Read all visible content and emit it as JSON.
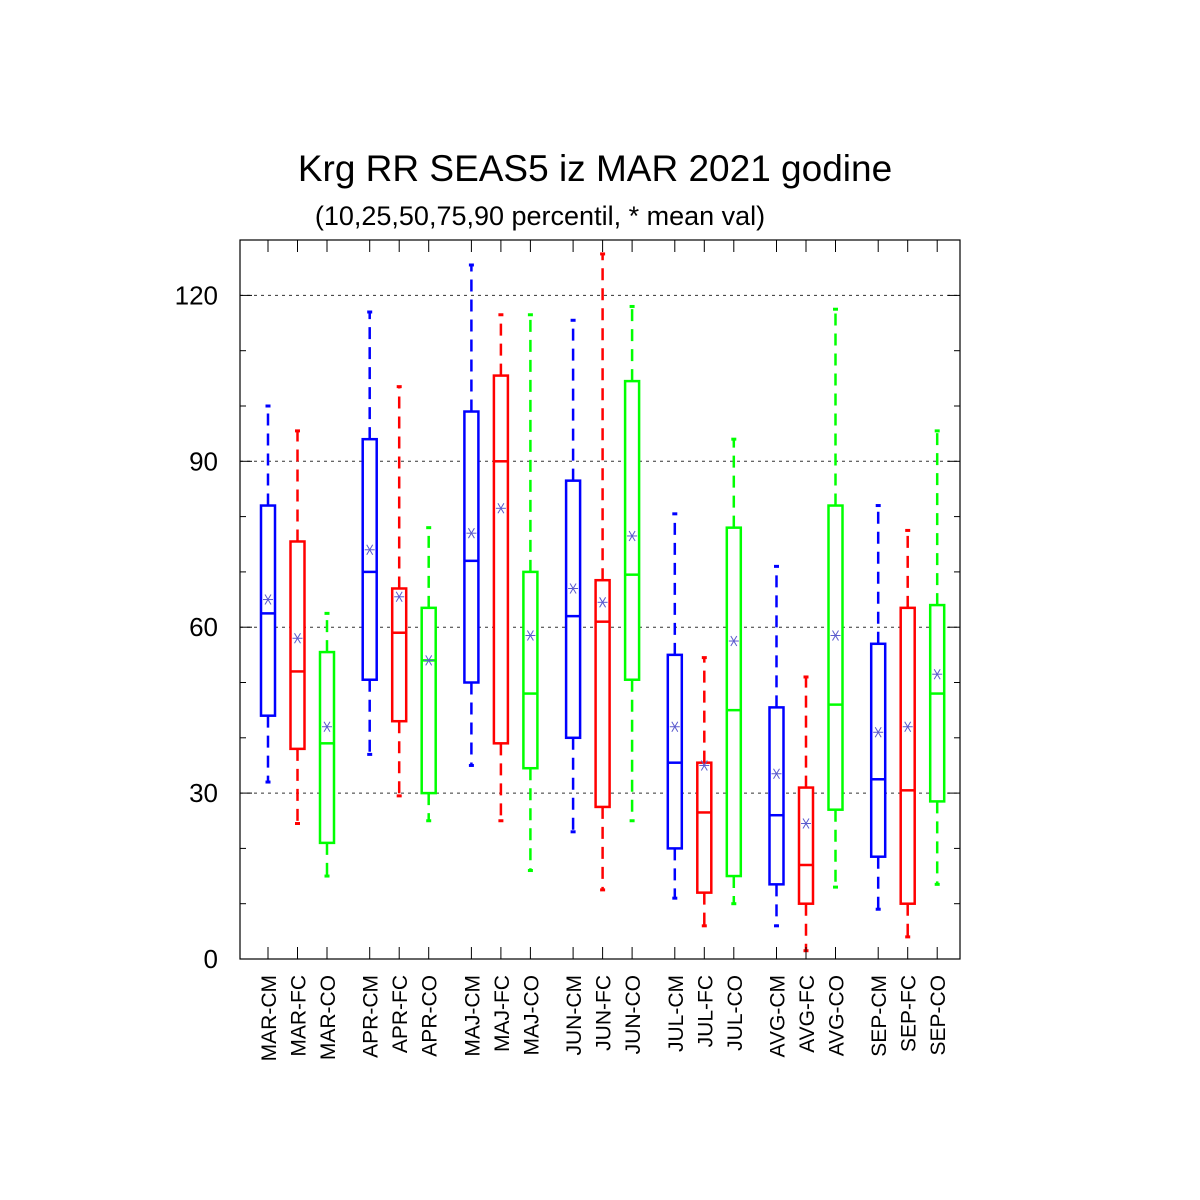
{
  "chart_data": {
    "type": "boxplot",
    "title": "Krg RR SEAS5 iz MAR 2021 godine",
    "subtitle": "(10,25,50,75,90 percentil, * mean val)",
    "xlabel": "",
    "ylabel": "",
    "ylim": [
      0,
      130
    ],
    "yticks": [
      0,
      30,
      60,
      90,
      120
    ],
    "grid": "horizontal-dashed",
    "colors": {
      "CM": "#0000ff",
      "FC": "#ff0000",
      "CO": "#00ff00",
      "mean_marker": "#5a5acd"
    },
    "categories": [
      "MAR-CM",
      "MAR-FC",
      "MAR-CO",
      "APR-CM",
      "APR-FC",
      "APR-CO",
      "MAJ-CM",
      "MAJ-FC",
      "MAJ-CO",
      "JUN-CM",
      "JUN-FC",
      "JUN-CO",
      "JUL-CM",
      "JUL-FC",
      "JUL-CO",
      "AVG-CM",
      "AVG-FC",
      "AVG-CO",
      "SEP-CM",
      "SEP-FC",
      "SEP-CO"
    ],
    "series": [
      {
        "label": "MAR-CM",
        "type": "CM",
        "p10": 32,
        "p25": 44,
        "p50": 62.5,
        "p75": 82,
        "p90": 100,
        "mean": 65
      },
      {
        "label": "MAR-FC",
        "type": "FC",
        "p10": 24.5,
        "p25": 38,
        "p50": 52,
        "p75": 75.5,
        "p90": 95.5,
        "mean": 58
      },
      {
        "label": "MAR-CO",
        "type": "CO",
        "p10": 15,
        "p25": 21,
        "p50": 39,
        "p75": 55.5,
        "p90": 62.5,
        "mean": 42
      },
      {
        "label": "APR-CM",
        "type": "CM",
        "p10": 37,
        "p25": 50.5,
        "p50": 70,
        "p75": 94,
        "p90": 117,
        "mean": 74
      },
      {
        "label": "APR-FC",
        "type": "FC",
        "p10": 29.5,
        "p25": 43,
        "p50": 59,
        "p75": 67,
        "p90": 103.5,
        "mean": 65.5
      },
      {
        "label": "APR-CO",
        "type": "CO",
        "p10": 25,
        "p25": 30,
        "p50": 54,
        "p75": 63.5,
        "p90": 78,
        "mean": 54
      },
      {
        "label": "MAJ-CM",
        "type": "CM",
        "p10": 35,
        "p25": 50,
        "p50": 72,
        "p75": 99,
        "p90": 125.5,
        "mean": 77
      },
      {
        "label": "MAJ-FC",
        "type": "FC",
        "p10": 25,
        "p25": 39,
        "p50": 90,
        "p75": 105.5,
        "p90": 116.5,
        "mean": 81.5
      },
      {
        "label": "MAJ-CO",
        "type": "CO",
        "p10": 16,
        "p25": 34.5,
        "p50": 48,
        "p75": 70,
        "p90": 116.5,
        "mean": 58.5
      },
      {
        "label": "JUN-CM",
        "type": "CM",
        "p10": 23,
        "p25": 40,
        "p50": 62,
        "p75": 86.5,
        "p90": 115.5,
        "mean": 67
      },
      {
        "label": "JUN-FC",
        "type": "FC",
        "p10": 12.5,
        "p25": 27.5,
        "p50": 61,
        "p75": 68.5,
        "p90": 127.5,
        "mean": 64.5
      },
      {
        "label": "JUN-CO",
        "type": "CO",
        "p10": 25,
        "p25": 50.5,
        "p50": 69.5,
        "p75": 104.5,
        "p90": 118,
        "mean": 76.5
      },
      {
        "label": "JUL-CM",
        "type": "CM",
        "p10": 11,
        "p25": 20,
        "p50": 35.5,
        "p75": 55,
        "p90": 80.5,
        "mean": 42
      },
      {
        "label": "JUL-FC",
        "type": "FC",
        "p10": 6,
        "p25": 12,
        "p50": 26.5,
        "p75": 35.5,
        "p90": 54.5,
        "mean": 35
      },
      {
        "label": "JUL-CO",
        "type": "CO",
        "p10": 10,
        "p25": 15,
        "p50": 45,
        "p75": 78,
        "p90": 94,
        "mean": 57.5
      },
      {
        "label": "AVG-CM",
        "type": "CM",
        "p10": 6,
        "p25": 13.5,
        "p50": 26,
        "p75": 45.5,
        "p90": 71,
        "mean": 33.5
      },
      {
        "label": "AVG-FC",
        "type": "FC",
        "p10": 1.5,
        "p25": 10,
        "p50": 17,
        "p75": 31,
        "p90": 51,
        "mean": 24.5
      },
      {
        "label": "AVG-CO",
        "type": "CO",
        "p10": 13,
        "p25": 27,
        "p50": 46,
        "p75": 82,
        "p90": 117.5,
        "mean": 58.5
      },
      {
        "label": "SEP-CM",
        "type": "CM",
        "p10": 9,
        "p25": 18.5,
        "p50": 32.5,
        "p75": 57,
        "p90": 82,
        "mean": 41
      },
      {
        "label": "SEP-FC",
        "type": "FC",
        "p10": 4,
        "p25": 10,
        "p50": 30.5,
        "p75": 63.5,
        "p90": 77.5,
        "mean": 42
      },
      {
        "label": "SEP-CO",
        "type": "CO",
        "p10": 13.5,
        "p25": 28.5,
        "p50": 48,
        "p75": 64,
        "p90": 95.5,
        "mean": 51.5
      }
    ]
  }
}
